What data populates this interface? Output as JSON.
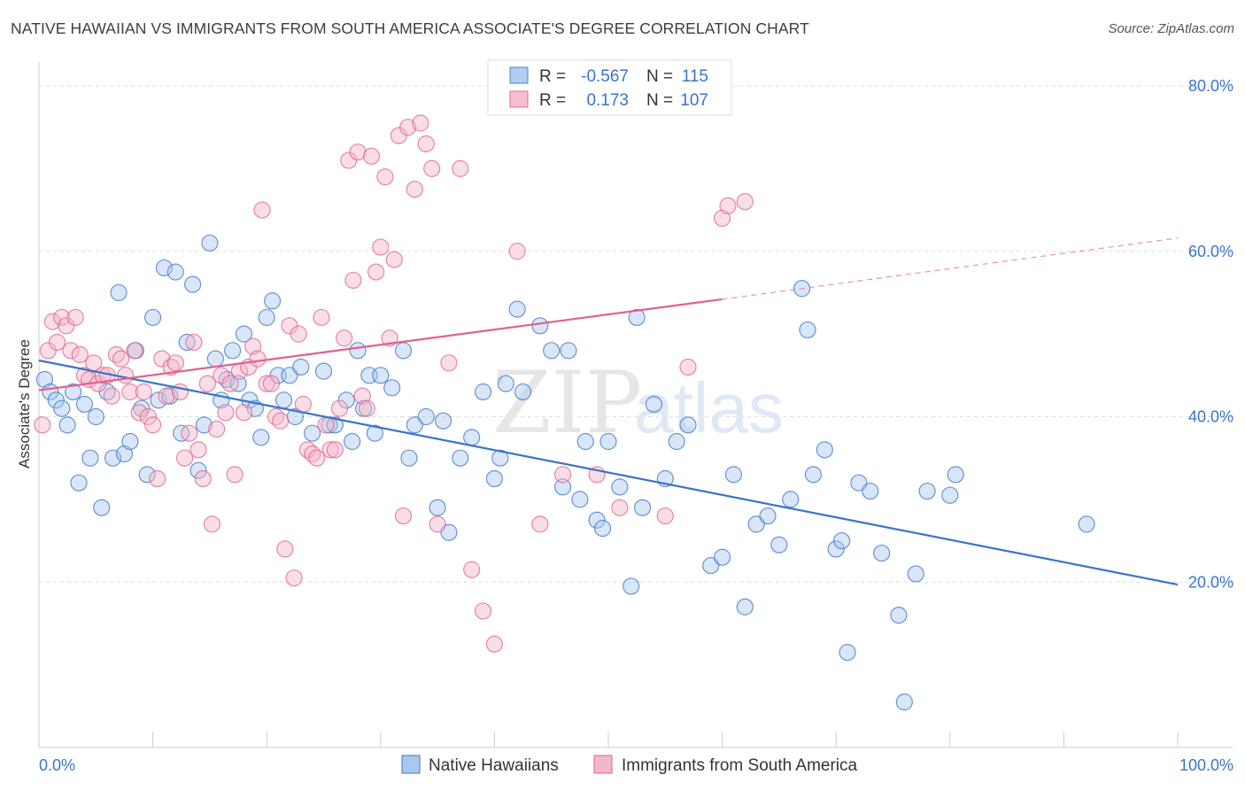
{
  "title": "NATIVE HAWAIIAN VS IMMIGRANTS FROM SOUTH AMERICA ASSOCIATE'S DEGREE CORRELATION CHART",
  "source": "Source: ZipAtlas.com",
  "watermark": {
    "zip": "ZIP",
    "atlas": "atlas"
  },
  "colors": {
    "blue": "#3a74c8",
    "blue_fill": "#a9c8f0",
    "pink": "#e0608e",
    "pink_fill": "#f4b6ca",
    "grid": "#dddddd"
  },
  "legend": {
    "r_label": "R =",
    "n_label": "N =",
    "rows": [
      {
        "series": "Native Hawaiians",
        "r": "-0.567",
        "n": "115"
      },
      {
        "series": "Immigrants from South America",
        "r": "0.173",
        "n": "107"
      }
    ]
  },
  "chart_data": {
    "type": "scatter",
    "ylabel": "Associate's Degree",
    "xlim": [
      0,
      100
    ],
    "ylim": [
      0,
      80
    ],
    "x_tick_labels": [
      "0.0%",
      "100.0%"
    ],
    "y_ticks": [
      20,
      40,
      60,
      80
    ],
    "y_tick_labels": [
      "20.0%",
      "40.0%",
      "60.0%",
      "80.0%"
    ],
    "grid": true,
    "legend_position": "top-center",
    "series": [
      {
        "name": "Native Hawaiians",
        "color": "#3a74c8",
        "trend": {
          "x0": 0,
          "y0": 46.8,
          "x1": 100,
          "y1": 19.7
        },
        "points": [
          [
            0.5,
            44.5
          ],
          [
            1,
            43
          ],
          [
            1.5,
            42
          ],
          [
            2,
            41
          ],
          [
            2.5,
            39
          ],
          [
            3,
            43
          ],
          [
            3.5,
            32
          ],
          [
            4,
            41.5
          ],
          [
            4.5,
            35
          ],
          [
            5,
            40
          ],
          [
            5.5,
            29
          ],
          [
            6,
            43
          ],
          [
            6.5,
            35
          ],
          [
            7,
            55
          ],
          [
            7.5,
            35.5
          ],
          [
            8,
            37
          ],
          [
            8.5,
            48
          ],
          [
            9,
            41
          ],
          [
            9.5,
            33
          ],
          [
            10,
            52
          ],
          [
            10.5,
            42
          ],
          [
            11,
            58
          ],
          [
            11.5,
            42.5
          ],
          [
            12,
            57.5
          ],
          [
            12.5,
            38
          ],
          [
            13,
            49
          ],
          [
            13.5,
            56
          ],
          [
            14,
            33.5
          ],
          [
            14.5,
            39
          ],
          [
            15,
            61
          ],
          [
            15.5,
            47
          ],
          [
            16,
            42
          ],
          [
            16.5,
            44.5
          ],
          [
            17,
            48
          ],
          [
            17.5,
            44
          ],
          [
            18,
            50
          ],
          [
            18.5,
            42
          ],
          [
            19,
            41
          ],
          [
            19.5,
            37.5
          ],
          [
            20,
            52
          ],
          [
            20.5,
            54
          ],
          [
            21,
            45
          ],
          [
            21.5,
            42
          ],
          [
            22,
            45
          ],
          [
            22.5,
            40
          ],
          [
            23,
            46
          ],
          [
            24,
            38
          ],
          [
            25,
            45.5
          ],
          [
            25.5,
            39
          ],
          [
            26,
            39
          ],
          [
            27,
            42
          ],
          [
            27.5,
            37
          ],
          [
            28,
            48
          ],
          [
            28.5,
            41
          ],
          [
            29,
            45
          ],
          [
            29.5,
            38
          ],
          [
            30,
            45
          ],
          [
            31,
            43.5
          ],
          [
            32,
            48
          ],
          [
            32.5,
            35
          ],
          [
            33,
            39
          ],
          [
            34,
            40
          ],
          [
            35,
            29
          ],
          [
            35.5,
            39.5
          ],
          [
            36,
            26
          ],
          [
            37,
            35
          ],
          [
            38,
            37.5
          ],
          [
            39,
            43
          ],
          [
            40,
            32.5
          ],
          [
            40.5,
            35
          ],
          [
            41,
            44
          ],
          [
            42,
            53
          ],
          [
            42.5,
            43
          ],
          [
            44,
            51
          ],
          [
            45,
            48
          ],
          [
            46,
            31.5
          ],
          [
            46.5,
            48
          ],
          [
            47.5,
            30
          ],
          [
            48,
            37
          ],
          [
            49,
            27.5
          ],
          [
            49.5,
            26.5
          ],
          [
            50,
            37
          ],
          [
            51,
            31.5
          ],
          [
            52,
            19.5
          ],
          [
            52.5,
            52
          ],
          [
            53,
            29
          ],
          [
            54,
            41.5
          ],
          [
            55,
            32.5
          ],
          [
            56,
            37
          ],
          [
            57,
            39
          ],
          [
            59,
            22
          ],
          [
            60,
            23
          ],
          [
            61,
            33
          ],
          [
            62,
            17
          ],
          [
            63,
            27
          ],
          [
            64,
            28
          ],
          [
            65,
            24.5
          ],
          [
            66,
            30
          ],
          [
            67,
            55.5
          ],
          [
            67.5,
            50.5
          ],
          [
            68,
            33
          ],
          [
            69,
            36
          ],
          [
            70,
            24
          ],
          [
            70.5,
            25
          ],
          [
            71,
            11.5
          ],
          [
            72,
            32
          ],
          [
            73,
            31
          ],
          [
            74,
            23.5
          ],
          [
            75.5,
            16
          ],
          [
            76,
            5.5
          ],
          [
            77,
            21
          ],
          [
            78,
            31
          ],
          [
            80,
            30.5
          ],
          [
            80.5,
            33
          ],
          [
            92,
            27
          ]
        ]
      },
      {
        "name": "Immigrants from South America",
        "color": "#e0608e",
        "trend": {
          "x0": 0,
          "y0": 43.2,
          "x1": 60,
          "y1": 54.2,
          "dash_to_x": 100,
          "dash_to_y": 61.6
        },
        "points": [
          [
            0.3,
            39
          ],
          [
            0.8,
            48
          ],
          [
            1.2,
            51.5
          ],
          [
            1.6,
            49
          ],
          [
            2,
            52
          ],
          [
            2.4,
            51
          ],
          [
            2.8,
            48
          ],
          [
            3.2,
            52
          ],
          [
            3.6,
            47.5
          ],
          [
            4,
            45
          ],
          [
            4.4,
            44.5
          ],
          [
            4.8,
            46.5
          ],
          [
            5.2,
            44
          ],
          [
            5.6,
            45
          ],
          [
            6,
            45
          ],
          [
            6.4,
            42.5
          ],
          [
            6.8,
            47.5
          ],
          [
            7.2,
            47
          ],
          [
            7.6,
            45
          ],
          [
            8,
            43
          ],
          [
            8.4,
            48
          ],
          [
            8.8,
            40.5
          ],
          [
            9.2,
            43
          ],
          [
            9.6,
            40
          ],
          [
            10,
            39
          ],
          [
            10.4,
            32.5
          ],
          [
            10.8,
            47
          ],
          [
            11.2,
            42.5
          ],
          [
            11.6,
            46
          ],
          [
            12,
            46.5
          ],
          [
            12.4,
            43
          ],
          [
            12.8,
            35
          ],
          [
            13.2,
            38
          ],
          [
            13.6,
            49
          ],
          [
            14,
            36
          ],
          [
            14.4,
            32.5
          ],
          [
            14.8,
            44
          ],
          [
            15.2,
            27
          ],
          [
            15.6,
            38.5
          ],
          [
            16,
            45
          ],
          [
            16.4,
            40.5
          ],
          [
            16.8,
            44
          ],
          [
            17.2,
            33
          ],
          [
            17.6,
            45.5
          ],
          [
            18,
            40.5
          ],
          [
            18.4,
            46
          ],
          [
            18.8,
            48.5
          ],
          [
            19.2,
            47
          ],
          [
            19.6,
            65
          ],
          [
            20,
            44
          ],
          [
            20.4,
            44
          ],
          [
            20.8,
            40
          ],
          [
            21.2,
            39.5
          ],
          [
            21.6,
            24
          ],
          [
            22,
            51
          ],
          [
            22.4,
            20.5
          ],
          [
            22.8,
            50
          ],
          [
            23.2,
            41.5
          ],
          [
            23.6,
            36
          ],
          [
            24,
            35.5
          ],
          [
            24.4,
            35
          ],
          [
            24.8,
            52
          ],
          [
            25.2,
            39
          ],
          [
            25.6,
            36
          ],
          [
            26,
            36
          ],
          [
            26.4,
            41
          ],
          [
            26.8,
            49.5
          ],
          [
            27.2,
            71
          ],
          [
            27.6,
            56.5
          ],
          [
            28,
            72
          ],
          [
            28.4,
            42.5
          ],
          [
            28.8,
            41
          ],
          [
            29.2,
            71.5
          ],
          [
            29.6,
            57.5
          ],
          [
            30,
            60.5
          ],
          [
            30.4,
            69
          ],
          [
            30.8,
            49.5
          ],
          [
            31.2,
            59
          ],
          [
            31.6,
            74
          ],
          [
            32,
            28
          ],
          [
            32.4,
            75
          ],
          [
            33,
            67.5
          ],
          [
            33.5,
            75.5
          ],
          [
            34,
            73
          ],
          [
            34.5,
            70
          ],
          [
            35,
            27
          ],
          [
            36,
            46.5
          ],
          [
            37,
            70
          ],
          [
            38,
            21.5
          ],
          [
            39,
            16.5
          ],
          [
            40,
            12.5
          ],
          [
            42,
            60
          ],
          [
            44,
            27
          ],
          [
            46,
            33
          ],
          [
            49,
            33
          ],
          [
            51,
            29
          ],
          [
            55,
            28
          ],
          [
            57,
            46
          ],
          [
            60,
            64
          ],
          [
            60.5,
            65.5
          ],
          [
            62,
            66
          ]
        ]
      }
    ]
  },
  "bottom_legend": [
    {
      "label": "Native Hawaiians"
    },
    {
      "label": "Immigrants from South America"
    }
  ]
}
